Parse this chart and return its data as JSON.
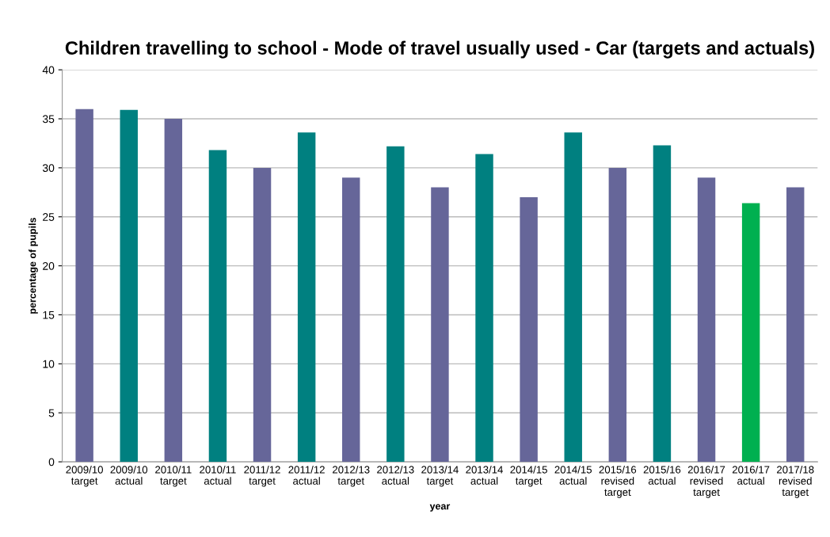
{
  "chart_data": {
    "type": "bar",
    "title": "Children travelling to school - Mode of travel usually used - Car (targets and actuals)",
    "xlabel": "year",
    "ylabel": "percentage of pupils",
    "categories": [
      "2009/10\ntarget",
      "2009/10\nactual",
      "2010/11\ntarget",
      "2010/11\nactual",
      "2011/12\ntarget",
      "2011/12\nactual",
      "2012/13\ntarget",
      "2012/13\nactual",
      "2013/14\ntarget",
      "2013/14\nactual",
      "2014/15\ntarget",
      "2014/15\nactual",
      "2015/16\nrevised\ntarget",
      "2015/16\nactual",
      "2016/17\nrevised\ntarget",
      "2016/17\nactual",
      "2017/18\nrevised\ntarget"
    ],
    "values": [
      36,
      35.9,
      35,
      31.8,
      30,
      33.6,
      29,
      32.2,
      28,
      31.4,
      27,
      33.6,
      30,
      32.3,
      29,
      26.4,
      28
    ],
    "colors": [
      "#666699",
      "#008080",
      "#666699",
      "#008080",
      "#666699",
      "#008080",
      "#666699",
      "#008080",
      "#666699",
      "#008080",
      "#666699",
      "#008080",
      "#666699",
      "#008080",
      "#666699",
      "#00b050",
      "#666699"
    ],
    "ylim": [
      0,
      40
    ],
    "yticks": [
      0,
      5,
      10,
      15,
      20,
      25,
      30,
      35,
      40
    ],
    "grid": "y"
  }
}
